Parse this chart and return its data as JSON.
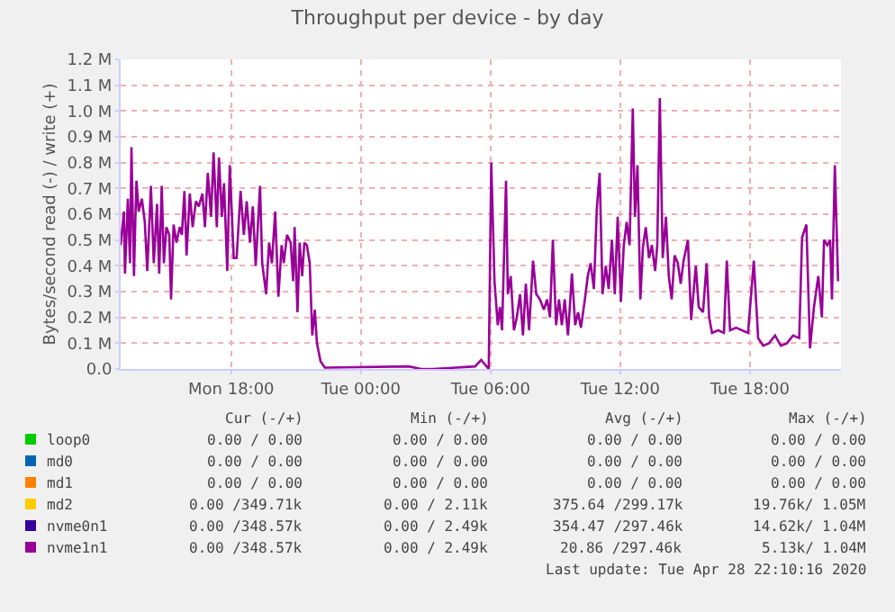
{
  "chart_data": {
    "type": "line",
    "title": "Throughput per device - by day",
    "ylabel": "Bytes/second read (-) / write (+)",
    "xlim": [
      "2020-04-27T12:53",
      "2020-04-28T22:13"
    ],
    "xticks": [
      {
        "value": "2020-04-27T18:00",
        "label": "Mon 18:00"
      },
      {
        "value": "2020-04-28T00:00",
        "label": "Tue 00:00"
      },
      {
        "value": "2020-04-28T06:00",
        "label": "Tue 06:00"
      },
      {
        "value": "2020-04-28T12:00",
        "label": "Tue 12:00"
      },
      {
        "value": "2020-04-28T18:00",
        "label": "Tue 18:00"
      }
    ],
    "ylim": [
      0,
      1.2
    ],
    "yticks": [
      {
        "value": 0,
        "label": "0.0"
      },
      {
        "value": 0.1,
        "label": "0.1 M"
      },
      {
        "value": 0.2,
        "label": "0.2 M"
      },
      {
        "value": 0.3,
        "label": "0.3 M"
      },
      {
        "value": 0.4,
        "label": "0.4 M"
      },
      {
        "value": 0.5,
        "label": "0.5 M"
      },
      {
        "value": 0.6,
        "label": "0.6 M"
      },
      {
        "value": 0.7,
        "label": "0.7 M"
      },
      {
        "value": 0.8,
        "label": "0.8 M"
      },
      {
        "value": 0.9,
        "label": "0.9 M"
      },
      {
        "value": 1.0,
        "label": "1.0 M"
      },
      {
        "value": 1.1,
        "label": "1.1 M"
      },
      {
        "value": 1.2,
        "label": "1.2 M"
      }
    ],
    "grid": true,
    "legend": "bottom left",
    "marker": "none",
    "line_style": "solid",
    "x": [
      "2020-04-27T12:53",
      "2020-04-27T13:02",
      "2020-04-27T13:05",
      "2020-04-27T13:13",
      "2020-04-27T13:19",
      "2020-04-27T13:23",
      "2020-04-27T13:30",
      "2020-04-27T13:34",
      "2020-04-27T13:37",
      "2020-04-27T13:43",
      "2020-04-27T13:52",
      "2020-04-27T14:00",
      "2020-04-27T14:07",
      "2020-04-27T14:17",
      "2020-04-27T14:25",
      "2020-04-27T14:34",
      "2020-04-27T14:40",
      "2020-04-27T14:47",
      "2020-04-27T14:53",
      "2020-04-27T15:00",
      "2020-04-27T15:08",
      "2020-04-27T15:13",
      "2020-04-27T15:20",
      "2020-04-27T15:28",
      "2020-04-27T15:37",
      "2020-04-27T15:43",
      "2020-04-27T15:50",
      "2020-04-27T15:56",
      "2020-04-27T16:05",
      "2020-04-27T16:13",
      "2020-04-27T16:22",
      "2020-04-27T16:30",
      "2020-04-27T16:40",
      "2020-04-27T16:47",
      "2020-04-27T16:55",
      "2020-04-27T17:04",
      "2020-04-27T17:11",
      "2020-04-27T17:20",
      "2020-04-27T17:26",
      "2020-04-27T17:34",
      "2020-04-27T17:40",
      "2020-04-27T17:49",
      "2020-04-27T17:56",
      "2020-04-27T18:07",
      "2020-04-27T18:15",
      "2020-04-27T18:26",
      "2020-04-27T18:35",
      "2020-04-27T18:43",
      "2020-04-27T18:52",
      "2020-04-27T19:00",
      "2020-04-27T19:08",
      "2020-04-27T19:20",
      "2020-04-27T19:26",
      "2020-04-27T19:37",
      "2020-04-27T19:45",
      "2020-04-27T19:53",
      "2020-04-27T20:02",
      "2020-04-27T20:11",
      "2020-04-27T20:20",
      "2020-04-27T20:26",
      "2020-04-27T20:35",
      "2020-04-27T20:45",
      "2020-04-27T20:52",
      "2020-04-27T20:56",
      "2020-04-27T21:04",
      "2020-04-27T21:10",
      "2020-04-27T21:17",
      "2020-04-27T21:23",
      "2020-04-27T21:30",
      "2020-04-27T21:38",
      "2020-04-27T21:45",
      "2020-04-27T21:52",
      "2020-04-27T21:58",
      "2020-04-27T22:08",
      "2020-04-27T22:20",
      "2020-04-28T02:13",
      "2020-04-28T02:47",
      "2020-04-28T03:20",
      "2020-04-28T05:17",
      "2020-04-28T05:34",
      "2020-04-28T05:55",
      "2020-04-28T06:02",
      "2020-04-28T06:11",
      "2020-04-28T06:20",
      "2020-04-28T06:26",
      "2020-04-28T06:32",
      "2020-04-28T06:43",
      "2020-04-28T06:48",
      "2020-04-28T06:56",
      "2020-04-28T07:05",
      "2020-04-28T07:13",
      "2020-04-28T07:22",
      "2020-04-28T07:30",
      "2020-04-28T07:38",
      "2020-04-28T07:47",
      "2020-04-28T07:58",
      "2020-04-28T08:07",
      "2020-04-28T08:17",
      "2020-04-28T08:28",
      "2020-04-28T08:37",
      "2020-04-28T08:45",
      "2020-04-28T08:53",
      "2020-04-28T09:02",
      "2020-04-28T09:10",
      "2020-04-28T09:18",
      "2020-04-28T09:26",
      "2020-04-28T09:35",
      "2020-04-28T09:46",
      "2020-04-28T09:55",
      "2020-04-28T10:03",
      "2020-04-28T10:11",
      "2020-04-28T10:22",
      "2020-04-28T10:30",
      "2020-04-28T10:38",
      "2020-04-28T10:47",
      "2020-04-28T10:55",
      "2020-04-28T11:03",
      "2020-04-28T11:11",
      "2020-04-28T11:20",
      "2020-04-28T11:28",
      "2020-04-28T11:37",
      "2020-04-28T11:45",
      "2020-04-28T11:53",
      "2020-04-28T12:02",
      "2020-04-28T12:10",
      "2020-04-28T12:18",
      "2020-04-28T12:26",
      "2020-04-28T12:35",
      "2020-04-28T12:41",
      "2020-04-28T12:48",
      "2020-04-28T12:56",
      "2020-04-28T13:03",
      "2020-04-28T13:11",
      "2020-04-28T13:20",
      "2020-04-28T13:28",
      "2020-04-28T13:37",
      "2020-04-28T13:43",
      "2020-04-28T13:50",
      "2020-04-28T13:58",
      "2020-04-28T14:07",
      "2020-04-28T14:15",
      "2020-04-28T14:23",
      "2020-04-28T14:31",
      "2020-04-28T14:40",
      "2020-04-28T14:48",
      "2020-04-28T14:56",
      "2020-04-28T15:08",
      "2020-04-28T15:17",
      "2020-04-28T15:30",
      "2020-04-28T15:38",
      "2020-04-28T15:50",
      "2020-04-28T16:00",
      "2020-04-28T16:07",
      "2020-04-28T16:15",
      "2020-04-28T16:32",
      "2020-04-28T16:48",
      "2020-04-28T16:56",
      "2020-04-28T17:05",
      "2020-04-28T17:22",
      "2020-04-28T17:38",
      "2020-04-28T17:55",
      "2020-04-28T18:11",
      "2020-04-28T18:23",
      "2020-04-28T18:37",
      "2020-04-28T18:53",
      "2020-04-28T19:10",
      "2020-04-28T19:26",
      "2020-04-28T19:43",
      "2020-04-28T20:00",
      "2020-04-28T20:17",
      "2020-04-28T20:25",
      "2020-04-28T20:37",
      "2020-04-28T20:47",
      "2020-04-28T20:58",
      "2020-04-28T21:10",
      "2020-04-28T21:20",
      "2020-04-28T21:26",
      "2020-04-28T21:35",
      "2020-04-28T21:43",
      "2020-04-28T21:48",
      "2020-04-28T21:56",
      "2020-04-28T22:05"
    ],
    "series": [
      {
        "name": "loop0",
        "color": "#00cc00",
        "values": [
          null,
          null,
          null,
          null,
          null,
          null,
          null,
          null,
          null,
          null,
          null,
          null,
          null,
          null,
          null,
          null,
          null,
          null,
          null,
          null,
          null,
          null,
          null,
          null,
          null,
          null,
          null,
          null,
          null,
          null,
          null,
          null,
          null,
          null,
          null,
          null,
          null,
          null,
          null,
          null,
          null,
          null,
          null,
          null,
          null,
          null,
          null,
          null,
          null,
          null,
          null,
          null,
          null,
          null,
          null,
          null,
          null,
          null,
          null,
          null,
          null,
          null,
          null,
          null,
          null,
          null,
          null,
          null,
          null,
          null,
          null,
          null,
          null,
          null,
          null,
          null,
          null,
          null,
          null,
          null,
          null,
          null,
          null,
          null,
          null,
          null,
          null,
          null,
          null,
          null,
          null,
          null,
          null,
          null,
          null,
          null,
          null,
          null,
          null,
          null,
          null,
          null,
          null,
          null,
          null,
          null,
          null,
          null,
          null,
          null,
          null,
          null,
          null,
          null,
          null,
          null,
          null,
          null,
          null,
          null,
          null,
          null,
          null,
          null,
          null,
          null,
          null,
          null,
          null,
          null,
          null,
          null,
          null,
          null,
          null,
          null,
          null,
          null,
          null,
          null,
          null,
          null,
          null,
          null,
          null,
          null,
          null,
          null,
          null,
          null,
          null,
          null,
          null,
          null,
          null,
          null,
          null,
          null,
          null,
          null,
          null,
          null,
          null,
          null,
          null,
          null,
          null,
          null,
          null,
          null,
          null,
          null,
          null,
          null,
          null,
          null,
          null,
          null,
          null,
          null,
          null,
          null
        ]
      },
      {
        "name": "md0",
        "color": "#0066b3",
        "values": [
          null,
          null,
          null,
          null,
          null,
          null,
          null,
          null,
          null,
          null,
          null,
          null,
          null,
          null,
          null,
          null,
          null,
          null,
          null,
          null,
          null,
          null,
          null,
          null,
          null,
          null,
          null,
          null,
          null,
          null,
          null,
          null,
          null,
          null,
          null,
          null,
          null,
          null,
          null,
          null,
          null,
          null,
          null,
          null,
          null,
          null,
          null,
          null,
          null,
          null,
          null,
          null,
          null,
          null,
          null,
          null,
          null,
          null,
          null,
          null,
          null,
          null,
          null,
          null,
          null,
          null,
          null,
          null,
          null,
          null,
          null,
          null,
          null,
          null,
          null,
          null,
          null,
          null,
          null,
          null,
          null,
          null,
          null,
          null,
          null,
          null,
          null,
          null,
          null,
          null,
          null,
          null,
          null,
          null,
          null,
          null,
          null,
          null,
          null,
          null,
          null,
          null,
          null,
          null,
          null,
          null,
          null,
          null,
          null,
          null,
          null,
          null,
          null,
          null,
          null,
          null,
          null,
          null,
          null,
          null,
          null,
          null,
          null,
          null,
          null,
          null,
          null,
          null,
          null,
          null,
          null,
          null,
          null,
          null,
          null,
          null,
          null,
          null,
          null,
          null,
          null,
          null,
          null,
          null,
          null,
          null,
          null,
          null,
          null,
          null,
          null,
          null,
          null,
          null,
          null,
          null,
          null,
          null,
          null,
          null,
          null,
          null,
          null,
          null,
          null,
          null,
          null,
          null,
          null,
          null,
          null,
          null,
          null,
          null,
          null,
          null,
          null,
          null,
          null,
          null,
          null,
          null
        ]
      },
      {
        "name": "md1",
        "color": "#ff8000",
        "values": [
          null,
          null,
          null,
          null,
          null,
          null,
          null,
          null,
          null,
          null,
          null,
          null,
          null,
          null,
          null,
          null,
          null,
          null,
          null,
          null,
          null,
          null,
          null,
          null,
          null,
          null,
          null,
          null,
          null,
          null,
          null,
          null,
          null,
          null,
          null,
          null,
          null,
          null,
          null,
          null,
          null,
          null,
          null,
          null,
          null,
          null,
          null,
          null,
          null,
          null,
          null,
          null,
          null,
          null,
          null,
          null,
          null,
          null,
          null,
          null,
          null,
          null,
          null,
          null,
          null,
          null,
          null,
          null,
          null,
          null,
          null,
          null,
          null,
          null,
          null,
          null,
          null,
          null,
          null,
          null,
          null,
          null,
          null,
          null,
          null,
          null,
          null,
          null,
          null,
          null,
          null,
          null,
          null,
          null,
          null,
          null,
          null,
          null,
          null,
          null,
          null,
          null,
          null,
          null,
          null,
          null,
          null,
          null,
          null,
          null,
          null,
          null,
          null,
          null,
          null,
          null,
          null,
          null,
          null,
          null,
          null,
          null,
          null,
          null,
          null,
          null,
          null,
          null,
          null,
          null,
          null,
          null,
          null,
          null,
          null,
          null,
          null,
          null,
          null,
          null,
          null,
          null,
          null,
          null,
          null,
          null,
          null,
          null,
          null,
          null,
          null,
          null,
          null,
          null,
          null,
          null,
          null,
          null,
          null,
          null,
          null,
          null,
          null,
          null,
          null,
          null,
          null,
          null,
          null,
          null,
          null,
          null,
          null,
          null,
          null,
          null,
          null,
          null,
          null,
          null,
          null,
          null
        ]
      },
      {
        "name": "md2",
        "color": "#ffcc00",
        "values": [
          null,
          null,
          null,
          null,
          null,
          null,
          null,
          null,
          null,
          null,
          null,
          null,
          null,
          null,
          null,
          null,
          null,
          null,
          null,
          null,
          null,
          null,
          null,
          null,
          null,
          null,
          null,
          null,
          null,
          null,
          null,
          null,
          null,
          null,
          null,
          null,
          null,
          null,
          null,
          null,
          null,
          null,
          null,
          null,
          null,
          null,
          null,
          null,
          null,
          null,
          null,
          null,
          null,
          null,
          null,
          null,
          null,
          null,
          null,
          null,
          null,
          null,
          null,
          null,
          null,
          null,
          null,
          null,
          null,
          null,
          null,
          null,
          null,
          null,
          null,
          null,
          null,
          null,
          null,
          null,
          null,
          null,
          null,
          null,
          null,
          null,
          null,
          null,
          null,
          null,
          null,
          null,
          null,
          null,
          null,
          null,
          null,
          null,
          null,
          null,
          null,
          null,
          null,
          null,
          null,
          null,
          null,
          null,
          null,
          null,
          null,
          null,
          null,
          null,
          null,
          null,
          null,
          null,
          null,
          null,
          null,
          null,
          null,
          null,
          null,
          null,
          null,
          null,
          null,
          null,
          null,
          null,
          null,
          null,
          null,
          null,
          null,
          null,
          null,
          null,
          null,
          null,
          null,
          null,
          null,
          null,
          null,
          null,
          null,
          null,
          null,
          null,
          null,
          null,
          null,
          null,
          null,
          null,
          null,
          null,
          null,
          null,
          null,
          null,
          null,
          null,
          null,
          null,
          null,
          null,
          null,
          null,
          null,
          null,
          null,
          null,
          null,
          null,
          null,
          null,
          null,
          null
        ]
      },
      {
        "name": "nvme0n1",
        "color": "#330099",
        "values": [
          null,
          null,
          null,
          null,
          null,
          null,
          null,
          null,
          null,
          null,
          null,
          null,
          null,
          null,
          null,
          null,
          null,
          null,
          null,
          null,
          null,
          null,
          null,
          null,
          null,
          null,
          null,
          null,
          null,
          null,
          null,
          null,
          null,
          null,
          null,
          null,
          null,
          null,
          null,
          null,
          null,
          null,
          null,
          null,
          null,
          null,
          null,
          null,
          null,
          null,
          null,
          null,
          null,
          null,
          null,
          null,
          null,
          null,
          null,
          null,
          null,
          null,
          null,
          null,
          null,
          null,
          null,
          null,
          null,
          null,
          null,
          null,
          null,
          null,
          null,
          null,
          null,
          null,
          null,
          null,
          null,
          null,
          null,
          null,
          null,
          null,
          null,
          null,
          null,
          null,
          null,
          null,
          null,
          null,
          null,
          null,
          null,
          null,
          null,
          null,
          null,
          null,
          null,
          null,
          null,
          null,
          null,
          null,
          null,
          null,
          null,
          null,
          null,
          null,
          null,
          null,
          null,
          null,
          null,
          null,
          null,
          null,
          null,
          null,
          null,
          null,
          null,
          null,
          null,
          null,
          null,
          null,
          null,
          null,
          null,
          null,
          null,
          null,
          null,
          null,
          null,
          null,
          null,
          null,
          null,
          null,
          null,
          null,
          null,
          null,
          null,
          null,
          null,
          null,
          null,
          null,
          null,
          null,
          null,
          null,
          null,
          null,
          null,
          null,
          null,
          null,
          null,
          null,
          null,
          null,
          null,
          null,
          null,
          null,
          null,
          null,
          null,
          null,
          null,
          null,
          null,
          null
        ]
      },
      {
        "name": "nvme1n1",
        "color": "#990099",
        "values": [
          0.48,
          0.61,
          0.37,
          0.66,
          0.41,
          0.86,
          0.36,
          0.59,
          0.73,
          0.61,
          0.66,
          0.57,
          0.38,
          0.71,
          0.41,
          0.64,
          0.37,
          0.71,
          0.41,
          0.55,
          0.52,
          0.27,
          0.56,
          0.49,
          0.55,
          0.52,
          0.69,
          0.44,
          0.68,
          0.55,
          0.65,
          0.63,
          0.68,
          0.55,
          0.76,
          0.59,
          0.84,
          0.55,
          0.82,
          0.59,
          0.72,
          0.38,
          0.79,
          0.43,
          0.43,
          0.69,
          0.52,
          0.65,
          0.49,
          0.63,
          0.4,
          0.71,
          0.41,
          0.29,
          0.49,
          0.41,
          0.61,
          0.28,
          0.48,
          0.41,
          0.52,
          0.49,
          0.34,
          0.55,
          0.22,
          0.49,
          0.36,
          0.49,
          0.48,
          0.41,
          0.13,
          0.23,
          0.1,
          0.03,
          0.005,
          0.01,
          0.0,
          0.0,
          0.01,
          0.035,
          0.0,
          0.8,
          0.34,
          0.17,
          0.24,
          0.15,
          0.73,
          0.29,
          0.36,
          0.15,
          0.2,
          0.29,
          0.13,
          0.33,
          0.15,
          0.42,
          0.29,
          0.27,
          0.23,
          0.27,
          0.2,
          0.5,
          0.17,
          0.27,
          0.17,
          0.27,
          0.13,
          0.37,
          0.17,
          0.22,
          0.16,
          0.27,
          0.36,
          0.41,
          0.31,
          0.62,
          0.76,
          0.29,
          0.4,
          0.31,
          0.5,
          0.29,
          0.59,
          0.26,
          0.48,
          0.57,
          0.48,
          1.01,
          0.59,
          0.79,
          0.27,
          0.47,
          0.55,
          0.43,
          0.48,
          0.38,
          0.48,
          1.05,
          0.43,
          0.59,
          0.36,
          0.27,
          0.44,
          0.41,
          0.33,
          0.42,
          0.5,
          0.19,
          0.4,
          0.24,
          0.22,
          0.41,
          0.2,
          0.14,
          0.15,
          0.14,
          0.42,
          0.15,
          0.16,
          0.15,
          0.14,
          0.42,
          0.12,
          0.09,
          0.1,
          0.13,
          0.09,
          0.1,
          0.13,
          0.12,
          0.51,
          0.56,
          0.08,
          0.24,
          0.36,
          0.2,
          0.5,
          0.48,
          0.5,
          0.27,
          0.79,
          0.34
        ]
      }
    ],
    "annotations": [
      "Cur (-/+)",
      "Min (-/+)",
      "Avg (-/+)",
      "Max (-/+)",
      "0.00 / 0.00",
      "0.00 / 0.00",
      "0.00 / 0.00",
      "0.00 / 0.00",
      "0.00 / 0.00",
      "0.00 / 0.00",
      "0.00 / 0.00",
      "0.00 / 0.00",
      "0.00 / 0.00",
      "0.00 / 0.00",
      "0.00 / 0.00",
      "0.00 / 0.00",
      "0.00 /349.71k",
      "0.00 / 2.11k",
      "375.64 /299.17k",
      "19.76k/ 1.05M",
      "0.00 /348.57k",
      "0.00 / 2.49k",
      "354.47 /297.46k",
      "14.62k/ 1.04M",
      "0.00 /348.57k",
      "0.00 / 2.49k",
      "20.86 /297.46k",
      "5.13k/ 1.04M",
      "Last update: Tue Apr 28 22:10:16 2020"
    ]
  }
}
